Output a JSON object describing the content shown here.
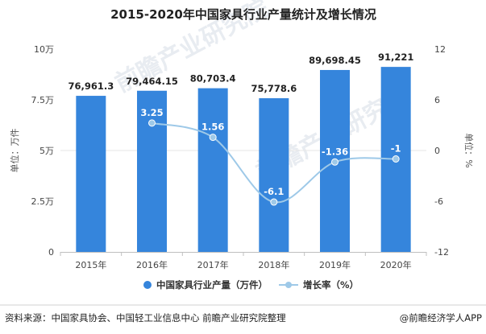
{
  "chart_data": {
    "type": "bar",
    "title": "2015-2020年中国家具行业产量统计及增长情况",
    "categories": [
      "2015年",
      "2016年",
      "2017年",
      "2018年",
      "2019年",
      "2020年"
    ],
    "series": [
      {
        "name": "中国家具行业产量（万件）",
        "type": "bar",
        "axis": "left",
        "values": [
          76961.3,
          79464.15,
          80703.4,
          75778.6,
          89698.45,
          91221
        ],
        "labels": [
          "76,961.3",
          "79,464.15",
          "80,703.4",
          "75,778.6",
          "89,698.45",
          "91,221"
        ],
        "color": "#3585dc"
      },
      {
        "name": "增长率（%）",
        "type": "line",
        "axis": "right",
        "values": [
          null,
          3.25,
          1.56,
          -6.1,
          -1.36,
          -1
        ],
        "labels": [
          "",
          "3.25",
          "1.56",
          "-6.1",
          "-1.36",
          "-1"
        ],
        "color": "#9ec9e8"
      }
    ],
    "ylabel_left": "单位：万件",
    "ylabel_right": "单位：%",
    "ylim_left": [
      0,
      100000
    ],
    "ylim_right": [
      -12,
      12
    ],
    "yticks_left": [
      "0",
      "2.5万",
      "5万",
      "7.5万",
      "10万"
    ],
    "yticks_right": [
      "-12",
      "-6",
      "0",
      "6",
      "12"
    ],
    "legend_position": "bottom"
  },
  "footer": {
    "source": "资料来源：中国家具协会、中国轻工业信息中心 前瞻产业研究院整理",
    "brand": "@前瞻经济学人APP"
  },
  "watermark": [
    "前瞻产业研究院",
    "前瞻产业研究院"
  ]
}
